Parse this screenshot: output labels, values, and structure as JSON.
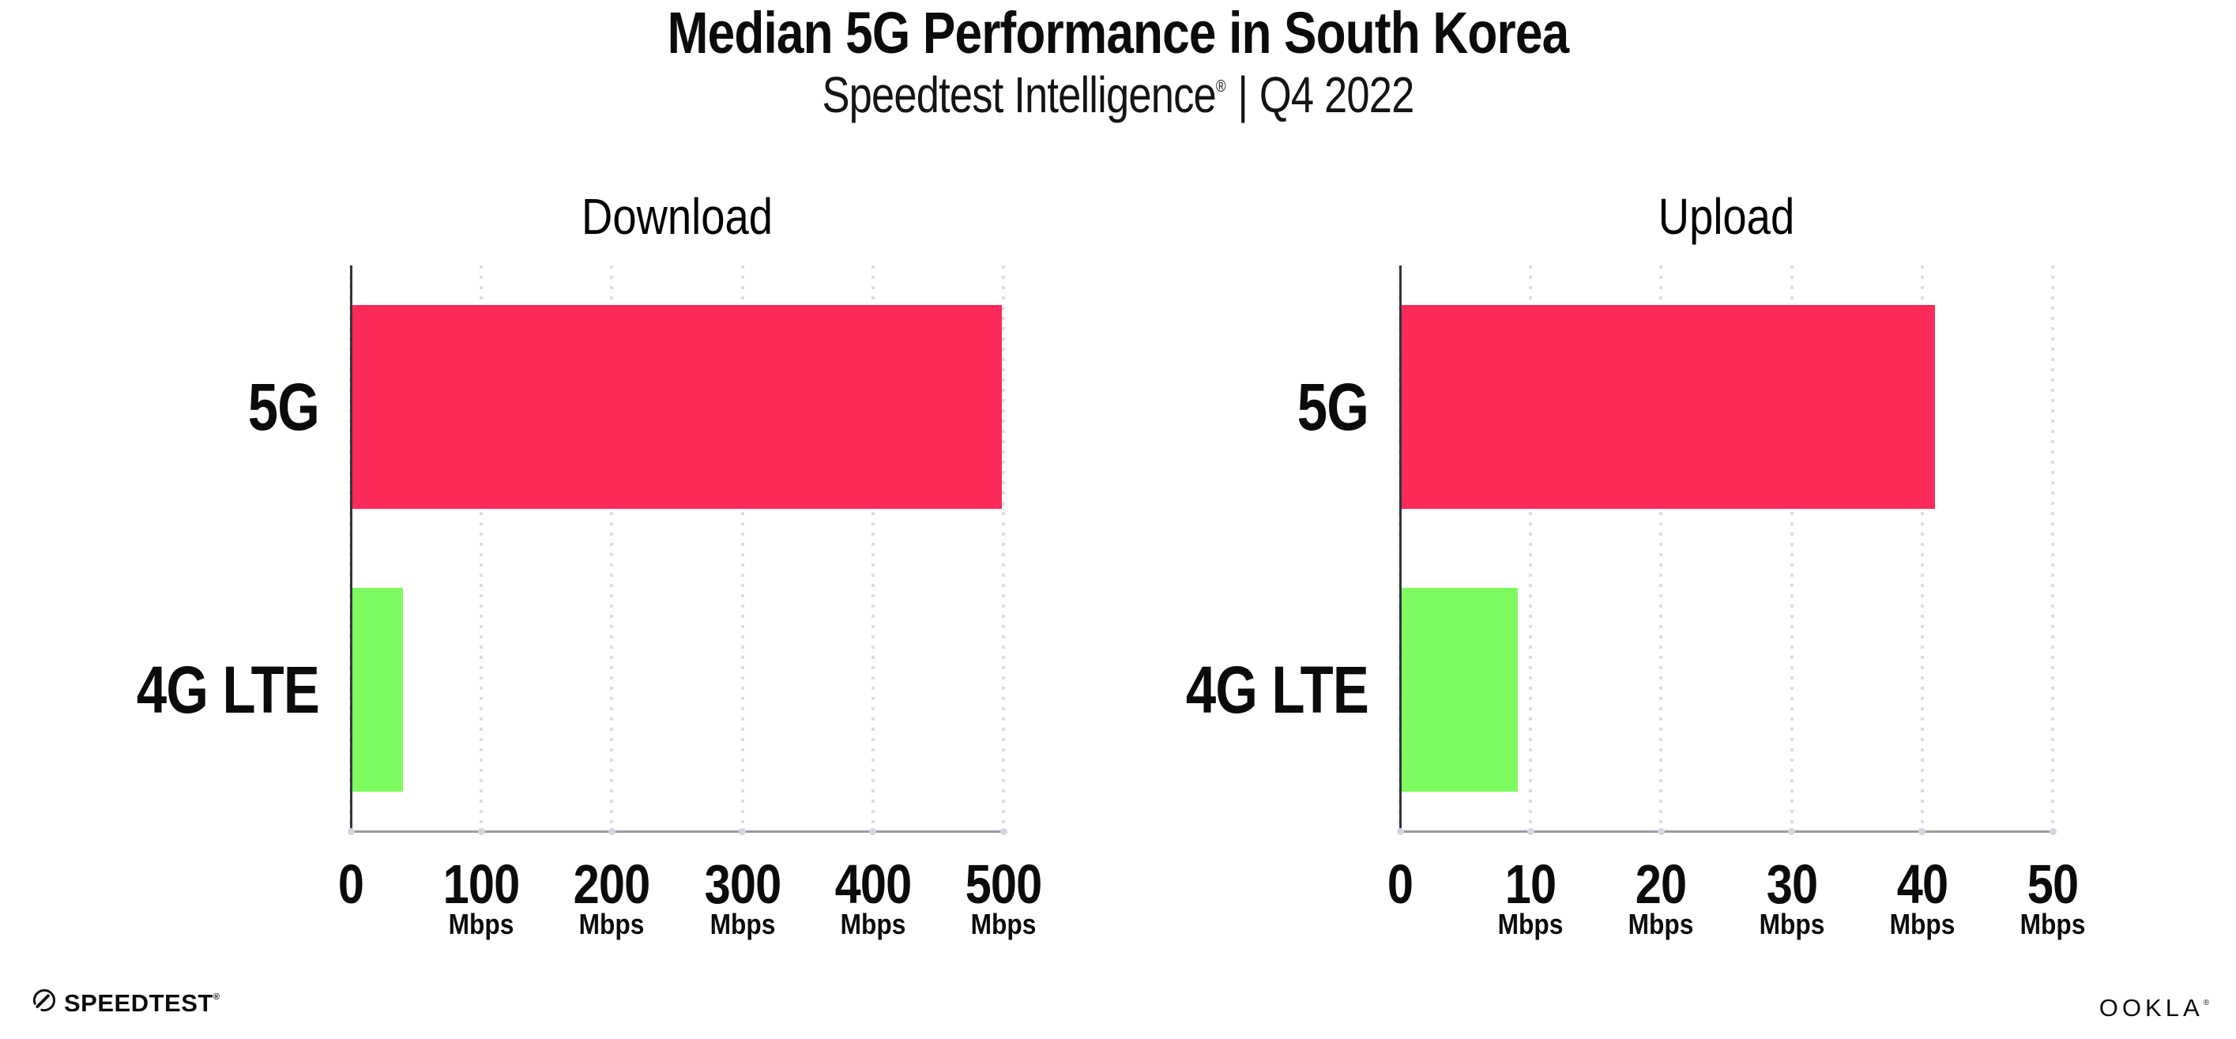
{
  "header": {
    "title": "Median 5G Performance in South Korea",
    "subtitle": {
      "brand": "Speedtest Intelligence",
      "registered": "®",
      "separator": "|",
      "period": "Q4 2022"
    }
  },
  "chart_data": [
    {
      "type": "bar",
      "orientation": "horizontal",
      "title": "Download",
      "categories": [
        "5G",
        "4G LTE"
      ],
      "values": [
        499,
        40
      ],
      "unit": "Mbps",
      "xlabel": "",
      "ylabel": "",
      "xlim": [
        0,
        500
      ],
      "x_ticks": [
        0,
        100,
        200,
        300,
        400,
        500
      ],
      "bar_colors": [
        "#FC2B5A",
        "#7EFB60"
      ],
      "grid": "vertical-dotted",
      "legend": "none"
    },
    {
      "type": "bar",
      "orientation": "horizontal",
      "title": "Upload",
      "categories": [
        "5G",
        "4G LTE"
      ],
      "values": [
        41,
        9
      ],
      "unit": "Mbps",
      "xlabel": "",
      "ylabel": "",
      "xlim": [
        0,
        50
      ],
      "x_ticks": [
        0,
        10,
        20,
        30,
        40,
        50
      ],
      "bar_colors": [
        "#FC2B5A",
        "#7EFB60"
      ],
      "grid": "vertical-dotted",
      "legend": "none"
    }
  ],
  "colors": {
    "bar_5g": "#FC2B5A",
    "bar_4g_lte": "#7EFB60",
    "x_axis": "#9b9b9b",
    "y_axis": "#34343e",
    "gridline_dots": "#dcdce8",
    "text": "#0b0b0b",
    "background": "#ffffff"
  },
  "footer": {
    "speedtest_label": "SPEEDTEST",
    "speedtest_registered": "®",
    "ookla_label": "OOKLA",
    "ookla_registered": "®"
  }
}
